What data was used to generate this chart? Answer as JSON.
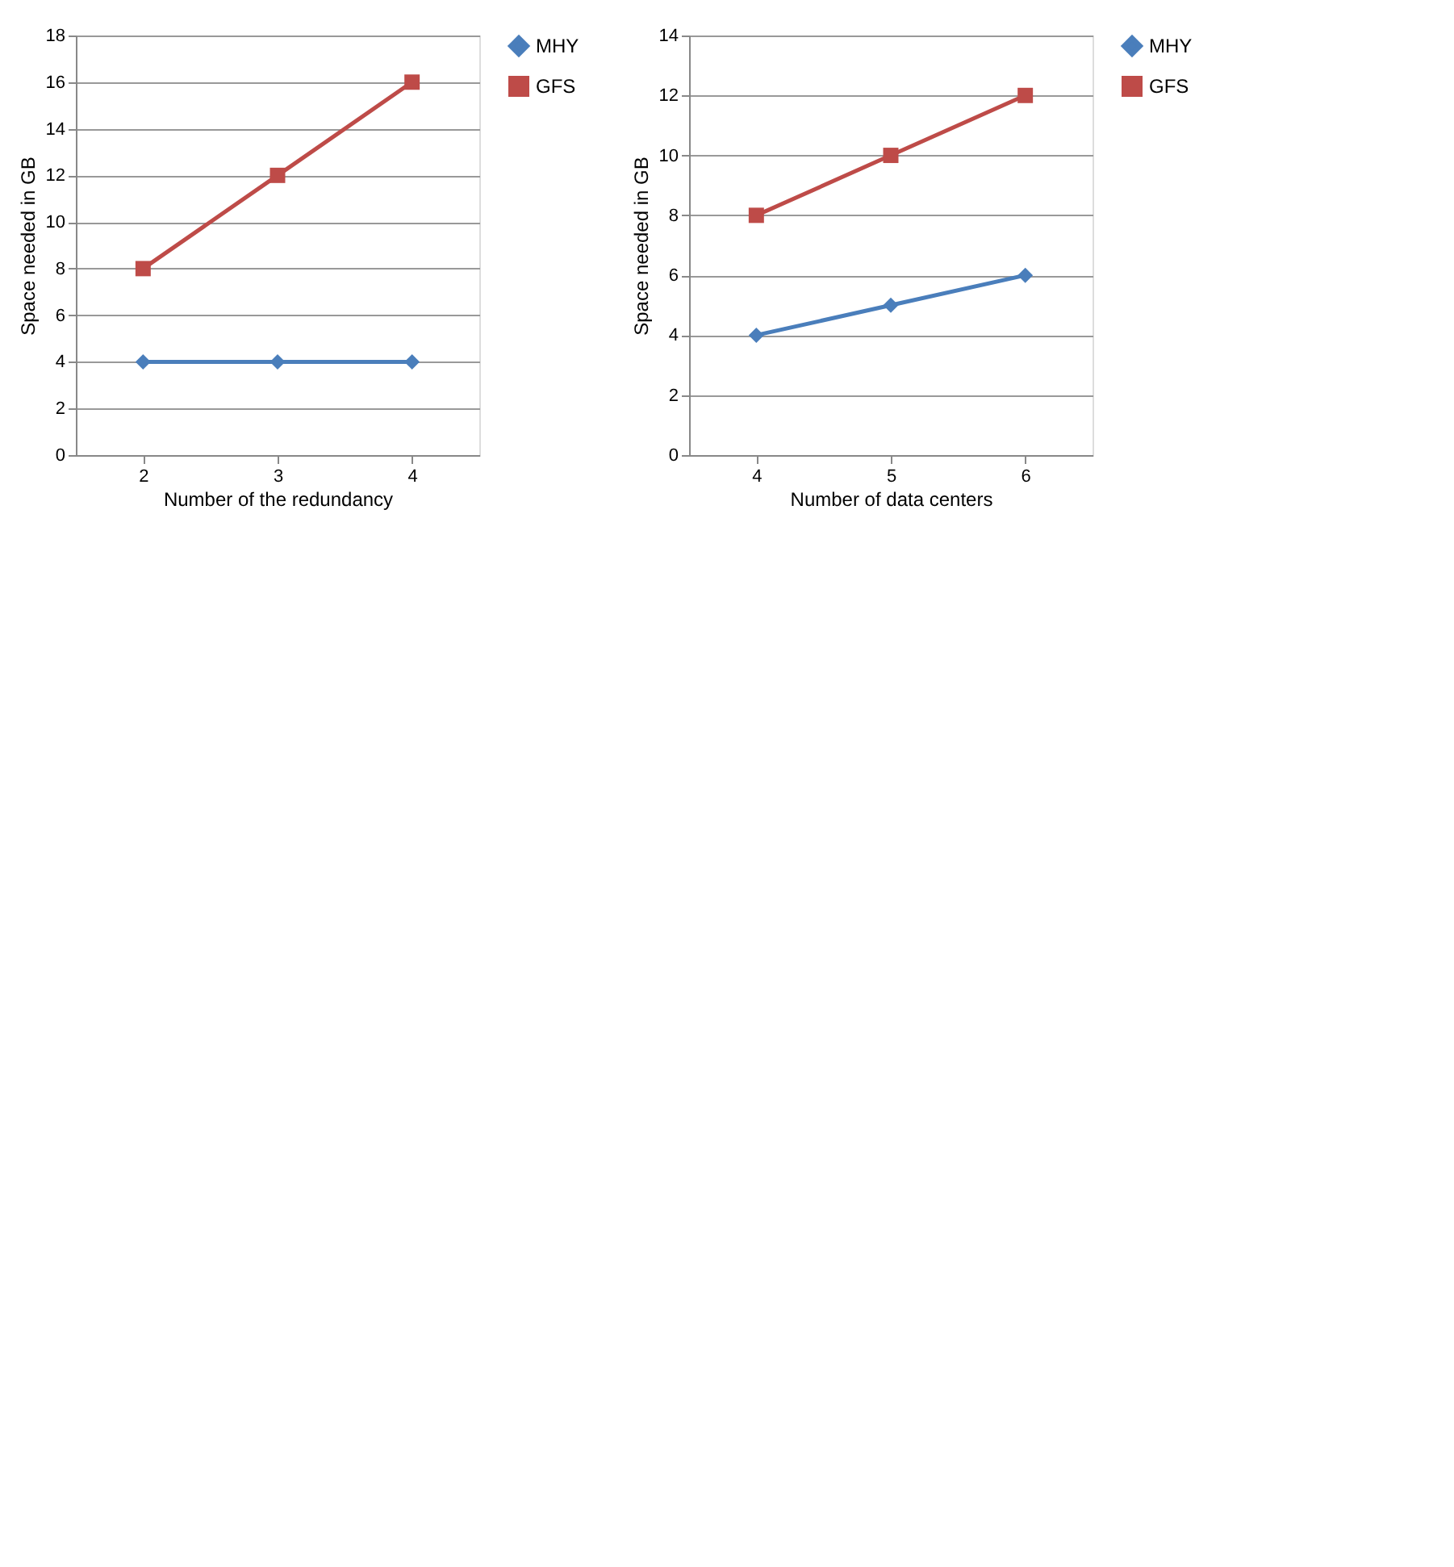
{
  "chart_data": [
    {
      "type": "line",
      "xlabel": "Number of the redundancy",
      "ylabel": "Space needed in GB",
      "categories": [
        "2",
        "3",
        "4"
      ],
      "ylim": [
        0,
        18
      ],
      "yticks": [
        0,
        2,
        4,
        6,
        8,
        10,
        12,
        14,
        16,
        18
      ],
      "grid": "y",
      "legend": "right",
      "series": [
        {
          "name": "MHY",
          "color": "#4a7ebb",
          "marker": "diamond",
          "values": [
            4,
            4,
            4
          ]
        },
        {
          "name": "GFS",
          "color": "#be4b48",
          "marker": "square",
          "values": [
            8,
            12,
            16
          ]
        }
      ]
    },
    {
      "type": "line",
      "xlabel": "Number of data centers",
      "ylabel": "Space needed in GB",
      "categories": [
        "4",
        "5",
        "6"
      ],
      "ylim": [
        0,
        14
      ],
      "yticks": [
        0,
        2,
        4,
        6,
        8,
        10,
        12,
        14
      ],
      "grid": "y",
      "legend": "right",
      "series": [
        {
          "name": "MHY",
          "color": "#4a7ebb",
          "marker": "diamond",
          "values": [
            4,
            5,
            6
          ]
        },
        {
          "name": "GFS",
          "color": "#be4b48",
          "marker": "square",
          "values": [
            8,
            10,
            12
          ]
        }
      ]
    }
  ]
}
